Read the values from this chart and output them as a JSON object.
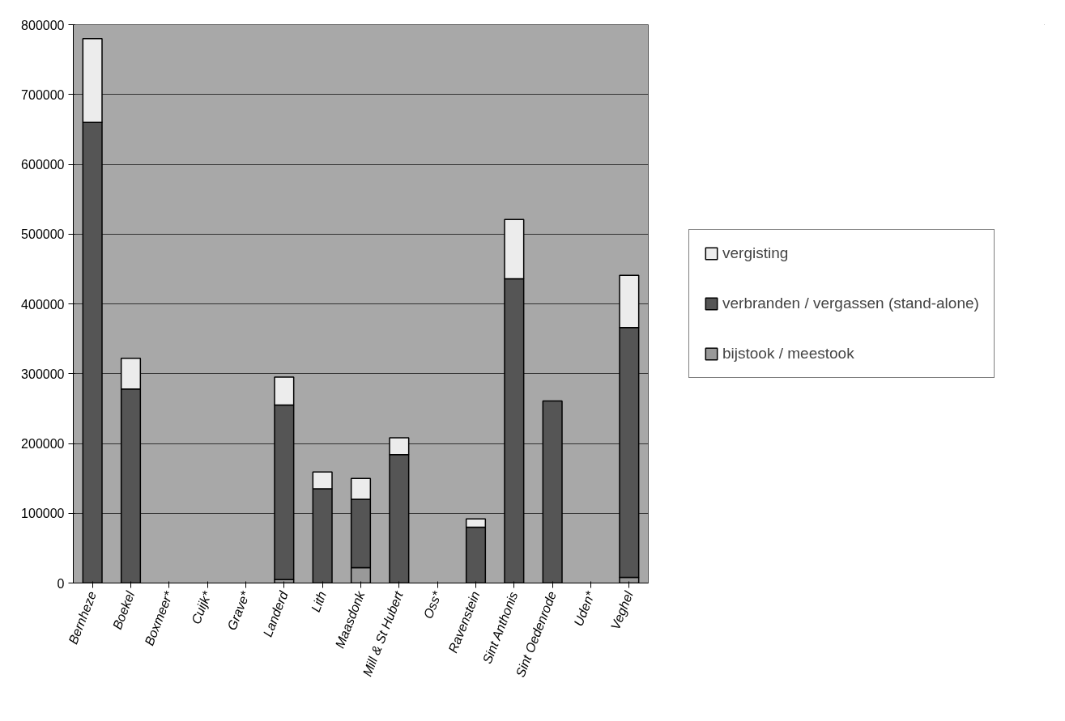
{
  "chart_data": {
    "type": "bar",
    "stacked": true,
    "categories": [
      "Bernheze",
      "Boekel",
      "Boxmeer*",
      "Cuijk*",
      "Grave*",
      "Landerd",
      "Lith",
      "Maasdonk",
      "Mill & St Hubert",
      "Oss*",
      "Ravenstein",
      "Sint Anthonis",
      "Sint Oedenrode",
      "Uden*",
      "Veghel"
    ],
    "series": [
      {
        "name": "bijstook / meestook",
        "color": "#999999",
        "values": [
          0,
          0,
          0,
          0,
          0,
          5000,
          0,
          22000,
          0,
          0,
          0,
          0,
          0,
          0,
          8000
        ]
      },
      {
        "name": "verbranden / vergassen (stand-alone)",
        "color": "#555555",
        "values": [
          660000,
          278000,
          0,
          0,
          0,
          250000,
          135000,
          98000,
          184000,
          0,
          80000,
          436000,
          261000,
          0,
          358000
        ]
      },
      {
        "name": "vergisting",
        "color": "#ececec",
        "values": [
          120000,
          44000,
          0,
          0,
          0,
          40000,
          24000,
          30000,
          24000,
          0,
          12000,
          85000,
          0,
          0,
          75000
        ]
      }
    ],
    "ylim": [
      0,
      800000
    ],
    "yticks": [
      0,
      100000,
      200000,
      300000,
      400000,
      500000,
      600000,
      700000,
      800000
    ],
    "grid": "y",
    "legend": "right"
  }
}
